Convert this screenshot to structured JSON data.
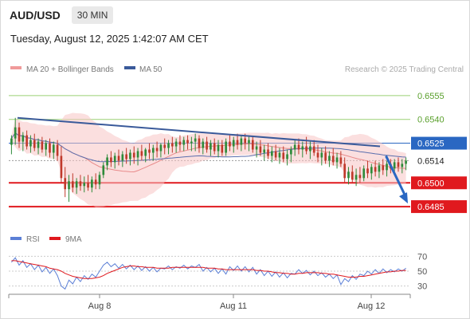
{
  "header": {
    "symbol": "AUD/USD",
    "timeframe": "30 MIN",
    "datetime": "Tuesday, August 12, 2025 1:42:07 AM CET"
  },
  "legend": {
    "ma20_label": "MA 20 + Bollinger Bands",
    "ma50_label": "MA 50",
    "copyright": "Research © 2025 Trading Central",
    "rsi_label": "RSI",
    "ma9_label": "9MA"
  },
  "colors": {
    "bullish": "#2e8b3a",
    "bearish": "#c0392b",
    "bollinger_fill": "#f7c5c5",
    "ma20": "#e88a8a",
    "ma50": "#5b6fae",
    "trendline": "#3a5a9a",
    "resistance": "#9bd175",
    "support": "#e0191e",
    "current": "#2a67c2",
    "arrow": "#2a67c2",
    "rsi": "#5b7fd6",
    "rsi_ma": "#e0191e"
  },
  "chart_data": [
    {
      "type": "candlestick",
      "title": "AUD/USD 30 MIN",
      "ylim": [
        0.6478,
        0.6562
      ],
      "x_ticks": [
        "Aug 8",
        "Aug 11",
        "Aug 12"
      ],
      "levels": [
        {
          "value": 0.6555,
          "label": "0.6555",
          "kind": "resistance"
        },
        {
          "value": 0.654,
          "label": "0.6540",
          "kind": "resistance"
        },
        {
          "value": 0.6525,
          "label": "0.6525",
          "kind": "current-level"
        },
        {
          "value": 0.6514,
          "label": "0.6514",
          "kind": "last-price"
        },
        {
          "value": 0.65,
          "label": "0.6500",
          "kind": "support"
        },
        {
          "value": 0.6485,
          "label": "0.6485",
          "kind": "support"
        }
      ],
      "trendline": {
        "from": {
          "x": 0.02,
          "y": 0.6541
        },
        "to": {
          "x": 0.93,
          "y": 0.6523
        }
      },
      "forecast_arrow": {
        "from": {
          "x": 0.945,
          "y": 0.6517
        },
        "to": {
          "x": 1.0,
          "y": 0.6487
        }
      },
      "ohlc": [
        [
          0.6524,
          0.653,
          0.6518,
          0.6528
        ],
        [
          0.6528,
          0.6541,
          0.6524,
          0.6535
        ],
        [
          0.6535,
          0.6538,
          0.6522,
          0.6526
        ],
        [
          0.6526,
          0.6532,
          0.652,
          0.653
        ],
        [
          0.653,
          0.6533,
          0.6521,
          0.6523
        ],
        [
          0.6523,
          0.653,
          0.6519,
          0.6527
        ],
        [
          0.6527,
          0.6531,
          0.652,
          0.6522
        ],
        [
          0.6522,
          0.6528,
          0.6518,
          0.6526
        ],
        [
          0.6526,
          0.6529,
          0.6519,
          0.6521
        ],
        [
          0.6521,
          0.6527,
          0.6517,
          0.6525
        ],
        [
          0.6525,
          0.6528,
          0.6516,
          0.6519
        ],
        [
          0.6519,
          0.6526,
          0.6515,
          0.6524
        ],
        [
          0.6524,
          0.6527,
          0.6514,
          0.6517
        ],
        [
          0.6517,
          0.6523,
          0.65,
          0.6503
        ],
        [
          0.6503,
          0.651,
          0.6491,
          0.6496
        ],
        [
          0.6496,
          0.6505,
          0.6488,
          0.6501
        ],
        [
          0.6501,
          0.6506,
          0.6494,
          0.6497
        ],
        [
          0.6497,
          0.6503,
          0.6493,
          0.6501
        ],
        [
          0.6501,
          0.6505,
          0.6495,
          0.6498
        ],
        [
          0.6498,
          0.6504,
          0.6494,
          0.65
        ],
        [
          0.65,
          0.6505,
          0.6495,
          0.6497
        ],
        [
          0.6497,
          0.6504,
          0.6494,
          0.6502
        ],
        [
          0.6502,
          0.6506,
          0.6496,
          0.6499
        ],
        [
          0.6499,
          0.6507,
          0.6496,
          0.6505
        ],
        [
          0.6505,
          0.6513,
          0.6503,
          0.6511
        ],
        [
          0.6511,
          0.6518,
          0.6508,
          0.6516
        ],
        [
          0.6516,
          0.652,
          0.651,
          0.6513
        ],
        [
          0.6513,
          0.6519,
          0.6509,
          0.6517
        ],
        [
          0.6517,
          0.6521,
          0.6511,
          0.6514
        ],
        [
          0.6514,
          0.652,
          0.651,
          0.6518
        ],
        [
          0.6518,
          0.6522,
          0.6512,
          0.6515
        ],
        [
          0.6515,
          0.6521,
          0.6511,
          0.6519
        ],
        [
          0.6519,
          0.6523,
          0.6512,
          0.6516
        ],
        [
          0.6516,
          0.6522,
          0.6511,
          0.652
        ],
        [
          0.652,
          0.6524,
          0.6514,
          0.6517
        ],
        [
          0.6517,
          0.6522,
          0.6513,
          0.6521
        ],
        [
          0.6521,
          0.6525,
          0.6515,
          0.6519
        ],
        [
          0.6519,
          0.6524,
          0.6514,
          0.6522
        ],
        [
          0.6522,
          0.6526,
          0.6516,
          0.652
        ],
        [
          0.652,
          0.6525,
          0.6516,
          0.6524
        ],
        [
          0.6524,
          0.6528,
          0.6518,
          0.6522
        ],
        [
          0.6522,
          0.6527,
          0.6518,
          0.6525
        ],
        [
          0.6525,
          0.6529,
          0.6519,
          0.6523
        ],
        [
          0.6523,
          0.6528,
          0.6519,
          0.6526
        ],
        [
          0.6526,
          0.653,
          0.652,
          0.6524
        ],
        [
          0.6524,
          0.6529,
          0.652,
          0.6527
        ],
        [
          0.6527,
          0.653,
          0.6521,
          0.6525
        ],
        [
          0.6525,
          0.6529,
          0.652,
          0.6526
        ],
        [
          0.6526,
          0.6531,
          0.652,
          0.6528
        ],
        [
          0.6528,
          0.653,
          0.6519,
          0.6522
        ],
        [
          0.6522,
          0.6528,
          0.6518,
          0.6526
        ],
        [
          0.6526,
          0.6529,
          0.6519,
          0.6521
        ],
        [
          0.6521,
          0.6527,
          0.6517,
          0.6525
        ],
        [
          0.6525,
          0.6528,
          0.6518,
          0.652
        ],
        [
          0.652,
          0.6527,
          0.6516,
          0.6524
        ],
        [
          0.6524,
          0.6527,
          0.6517,
          0.6519
        ],
        [
          0.6519,
          0.6528,
          0.6517,
          0.6526
        ],
        [
          0.6526,
          0.653,
          0.652,
          0.6523
        ],
        [
          0.6523,
          0.6529,
          0.6519,
          0.6527
        ],
        [
          0.6527,
          0.6531,
          0.6521,
          0.6524
        ],
        [
          0.6524,
          0.653,
          0.652,
          0.6528
        ],
        [
          0.6528,
          0.6531,
          0.6521,
          0.6525
        ],
        [
          0.6525,
          0.653,
          0.652,
          0.6527
        ],
        [
          0.6527,
          0.6529,
          0.6519,
          0.6521
        ],
        [
          0.6521,
          0.6526,
          0.6516,
          0.6523
        ],
        [
          0.6523,
          0.6527,
          0.6517,
          0.6519
        ],
        [
          0.6519,
          0.6524,
          0.6514,
          0.6521
        ],
        [
          0.6521,
          0.6525,
          0.6515,
          0.6517
        ],
        [
          0.6517,
          0.6523,
          0.6513,
          0.652
        ],
        [
          0.652,
          0.6524,
          0.6514,
          0.6516
        ],
        [
          0.6516,
          0.6522,
          0.6512,
          0.6519
        ],
        [
          0.6519,
          0.6523,
          0.6513,
          0.6515
        ],
        [
          0.6515,
          0.6521,
          0.6511,
          0.6518
        ],
        [
          0.6518,
          0.6523,
          0.6513,
          0.6521
        ],
        [
          0.6521,
          0.6527,
          0.6517,
          0.6524
        ],
        [
          0.6524,
          0.6528,
          0.6518,
          0.6521
        ],
        [
          0.6521,
          0.6526,
          0.6516,
          0.6523
        ],
        [
          0.6523,
          0.6529,
          0.6518,
          0.652
        ],
        [
          0.652,
          0.6526,
          0.6515,
          0.6523
        ],
        [
          0.6523,
          0.6527,
          0.6517,
          0.6519
        ],
        [
          0.6519,
          0.6524,
          0.6513,
          0.6516
        ],
        [
          0.6516,
          0.6522,
          0.6511,
          0.6519
        ],
        [
          0.6519,
          0.6523,
          0.6512,
          0.6514
        ],
        [
          0.6514,
          0.652,
          0.651,
          0.6517
        ],
        [
          0.6517,
          0.6522,
          0.6511,
          0.6513
        ],
        [
          0.6513,
          0.6519,
          0.6509,
          0.6516
        ],
        [
          0.6516,
          0.652,
          0.651,
          0.6512
        ],
        [
          0.6512,
          0.6516,
          0.65,
          0.6503
        ],
        [
          0.6503,
          0.651,
          0.6499,
          0.6507
        ],
        [
          0.6507,
          0.6511,
          0.65,
          0.6502
        ],
        [
          0.6502,
          0.6509,
          0.6498,
          0.6505
        ],
        [
          0.6505,
          0.651,
          0.65,
          0.6503
        ],
        [
          0.6503,
          0.6511,
          0.6501,
          0.6509
        ],
        [
          0.6509,
          0.6514,
          0.6503,
          0.6506
        ],
        [
          0.6506,
          0.6512,
          0.6502,
          0.651
        ],
        [
          0.651,
          0.6514,
          0.6504,
          0.6507
        ],
        [
          0.6507,
          0.6513,
          0.6503,
          0.6511
        ],
        [
          0.6511,
          0.6515,
          0.6505,
          0.6508
        ],
        [
          0.6508,
          0.6514,
          0.6504,
          0.6512
        ],
        [
          0.6512,
          0.6515,
          0.6506,
          0.6509
        ],
        [
          0.6509,
          0.6515,
          0.6505,
          0.6513
        ],
        [
          0.6513,
          0.6516,
          0.6507,
          0.651
        ],
        [
          0.651,
          0.6515,
          0.6506,
          0.6512
        ],
        [
          0.6512,
          0.6516,
          0.6508,
          0.6514
        ]
      ]
    },
    {
      "type": "line",
      "title": "RSI",
      "ylim": [
        20,
        80
      ],
      "y_ticks": [
        70,
        50,
        30
      ],
      "series": [
        {
          "name": "RSI",
          "values": [
            62,
            68,
            58,
            64,
            55,
            60,
            52,
            58,
            49,
            55,
            47,
            53,
            44,
            30,
            26,
            38,
            33,
            42,
            36,
            44,
            39,
            46,
            42,
            50,
            58,
            62,
            56,
            60,
            54,
            59,
            53,
            58,
            52,
            57,
            51,
            56,
            50,
            55,
            49,
            54,
            53,
            57,
            52,
            56,
            54,
            58,
            53,
            57,
            55,
            59,
            50,
            55,
            49,
            54,
            47,
            53,
            46,
            56,
            51,
            57,
            50,
            56,
            49,
            55,
            46,
            52,
            44,
            50,
            43,
            49,
            42,
            48,
            41,
            47,
            46,
            52,
            47,
            51,
            45,
            50,
            44,
            48,
            42,
            46,
            40,
            45,
            32,
            40,
            36,
            44,
            39,
            46,
            44,
            50,
            46,
            52,
            47,
            53,
            48,
            52,
            49,
            53,
            50,
            54
          ]
        },
        {
          "name": "9MA",
          "values": [
            64,
            64,
            63,
            62,
            61,
            60,
            59,
            58,
            57,
            56,
            54,
            53,
            52,
            50,
            47,
            45,
            43,
            42,
            41,
            40,
            40,
            40,
            41,
            42,
            44,
            47,
            49,
            51,
            53,
            55,
            56,
            57,
            57,
            56,
            56,
            55,
            55,
            55,
            54,
            54,
            54,
            54,
            55,
            55,
            55,
            55,
            55,
            55,
            55,
            55,
            55,
            54,
            54,
            54,
            53,
            53,
            52,
            52,
            52,
            52,
            52,
            52,
            52,
            52,
            51,
            51,
            50,
            50,
            49,
            48,
            48,
            47,
            47,
            46,
            46,
            47,
            47,
            48,
            48,
            48,
            48,
            47,
            47,
            46,
            46,
            45,
            44,
            43,
            42,
            42,
            42,
            43,
            43,
            44,
            45,
            46,
            47,
            48,
            49,
            49,
            50,
            50,
            51,
            51
          ]
        }
      ]
    }
  ]
}
